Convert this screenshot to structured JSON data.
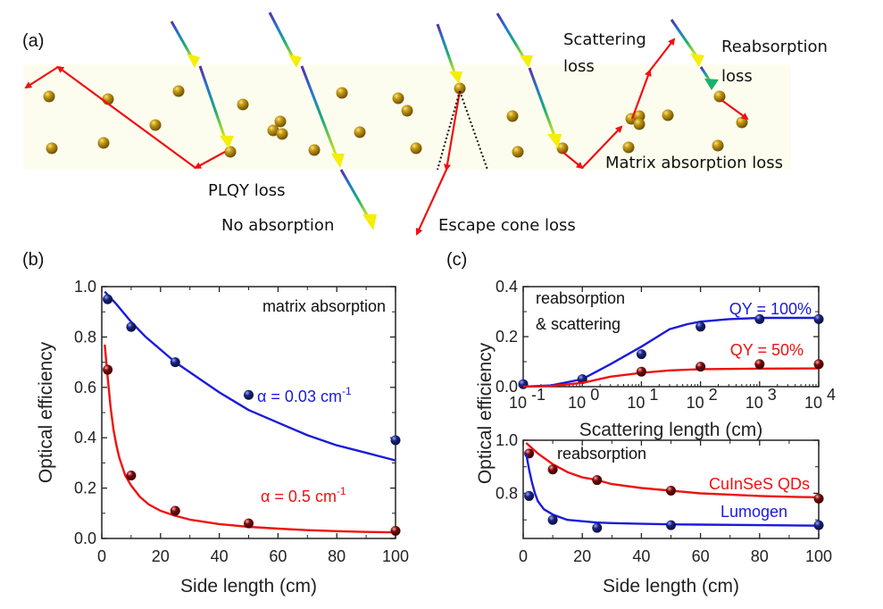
{
  "figure": {
    "panels": {
      "a": {
        "label": "(a)",
        "annotations": {
          "plqy": "PLQY loss",
          "no_absorption": "No absorption",
          "escape_cone": "Escape cone loss",
          "scattering_1": "Scattering",
          "scattering_2": "loss",
          "matrix": "Matrix absorption loss",
          "reabsorption_1": "Reabsorption",
          "reabsorption_2": "loss"
        },
        "colors": {
          "slab": "#fdfdef",
          "particle": "#b8900f",
          "emission": "#ee1111",
          "cone": "#111111"
        }
      },
      "b": {
        "label": "(b)"
      },
      "c": {
        "label": "(c)"
      }
    }
  },
  "chart_data": [
    {
      "id": "b",
      "type": "scatter",
      "title": "matrix absorption",
      "xlabel": "Side length (cm)",
      "ylabel": "Optical efficiency",
      "xlim": [
        0,
        100
      ],
      "ylim": [
        0,
        1.0
      ],
      "xticks": [
        0,
        20,
        40,
        60,
        80,
        100
      ],
      "yticks": [
        0.0,
        0.2,
        0.4,
        0.6,
        0.8,
        1.0
      ],
      "xtick_labels": [
        "0",
        "20",
        "40",
        "60",
        "80",
        "100"
      ],
      "ytick_labels": [
        "0.0",
        "0.2",
        "0.4",
        "0.6",
        "0.8",
        "1.0"
      ],
      "grid": false,
      "series": [
        {
          "name": "α = 0.03 cm⁻¹",
          "label_main": "α = 0.03 cm",
          "label_sup": "-1",
          "color": "#1a1adb",
          "marker_color": "#1a237e",
          "points": {
            "x": [
              2,
              10,
              25,
              50,
              100
            ],
            "y": [
              0.95,
              0.84,
              0.7,
              0.57,
              0.39
            ]
          },
          "fit": {
            "x": [
              1,
              5,
              10,
              15,
              20,
              25,
              30,
              40,
              50,
              60,
              70,
              80,
              90,
              100
            ],
            "y": [
              0.98,
              0.93,
              0.86,
              0.8,
              0.75,
              0.7,
              0.66,
              0.58,
              0.51,
              0.46,
              0.41,
              0.37,
              0.34,
              0.31
            ]
          }
        },
        {
          "name": "α = 0.5 cm⁻¹",
          "label_main": "α = 0.5 cm",
          "label_sup": "-1",
          "color": "#ee1111",
          "marker_color": "#7a0a0a",
          "points": {
            "x": [
              2,
              10,
              25,
              50,
              100
            ],
            "y": [
              0.67,
              0.25,
              0.11,
              0.06,
              0.03
            ]
          },
          "fit": {
            "x": [
              1,
              2,
              3,
              4,
              5,
              6,
              8,
              10,
              13,
              16,
              20,
              25,
              30,
              40,
              50,
              60,
              70,
              80,
              90,
              100
            ],
            "y": [
              0.77,
              0.64,
              0.52,
              0.43,
              0.37,
              0.32,
              0.25,
              0.21,
              0.165,
              0.135,
              0.11,
              0.09,
              0.075,
              0.057,
              0.046,
              0.039,
              0.033,
              0.029,
              0.026,
              0.024
            ]
          }
        }
      ]
    },
    {
      "id": "c-top",
      "type": "scatter",
      "title": "reabsorption & scattering",
      "title_lines": [
        "reabsorption",
        "& scattering"
      ],
      "xlabel": "Scattering length (cm)",
      "ylabel": "Optical efficiency",
      "xscale": "log",
      "xlim": [
        0.1,
        10000
      ],
      "ylim": [
        0,
        0.4
      ],
      "xticks": [
        0.1,
        1,
        10,
        100,
        1000,
        10000
      ],
      "xtick_labels": [
        {
          "base": "10",
          "exp": "-1"
        },
        {
          "base": "10",
          "exp": "0"
        },
        {
          "base": "10",
          "exp": "1"
        },
        {
          "base": "10",
          "exp": "2"
        },
        {
          "base": "10",
          "exp": "3"
        },
        {
          "base": "10",
          "exp": "4"
        }
      ],
      "yticks": [
        0.0,
        0.2,
        0.4
      ],
      "ytick_labels": [
        "0.0",
        "0.2",
        "0.4"
      ],
      "grid": false,
      "series": [
        {
          "name": "QY = 100%",
          "color": "#1a1adb",
          "marker_color": "#1a237e",
          "points": {
            "x": [
              0.1,
              1,
              10,
              100,
              1000,
              10000
            ],
            "y": [
              0.01,
              0.03,
              0.13,
              0.24,
              0.27,
              0.27
            ]
          },
          "fit": {
            "x": [
              0.1,
              0.3,
              1,
              3,
              10,
              30,
              60,
              100,
              300,
              1000,
              3000,
              10000
            ],
            "y": [
              0.0,
              0.005,
              0.03,
              0.09,
              0.16,
              0.23,
              0.25,
              0.26,
              0.27,
              0.275,
              0.275,
              0.275
            ]
          }
        },
        {
          "name": "QY = 50%",
          "color": "#ee1111",
          "marker_color": "#7a0a0a",
          "points": {
            "x": [
              10,
              100,
              1000,
              10000
            ],
            "y": [
              0.06,
              0.08,
              0.09,
              0.09
            ]
          },
          "fit": {
            "x": [
              0.1,
              0.3,
              1,
              3,
              10,
              30,
              100,
              1000,
              10000
            ],
            "y": [
              0.0,
              0.003,
              0.015,
              0.04,
              0.055,
              0.065,
              0.07,
              0.072,
              0.073
            ]
          }
        }
      ]
    },
    {
      "id": "c-bottom",
      "type": "scatter",
      "title": "reabsorption",
      "xlabel": "Side length (cm)",
      "ylabel": "Optical efficiency",
      "xlim": [
        0,
        100
      ],
      "ylim": [
        0.63,
        1.0
      ],
      "xticks": [
        0,
        20,
        40,
        60,
        80,
        100
      ],
      "xtick_labels": [
        "0",
        "20",
        "40",
        "60",
        "80",
        "100"
      ],
      "yticks": [
        0.8,
        1.0
      ],
      "ytick_labels": [
        "0.8",
        "1.0"
      ],
      "grid": false,
      "series": [
        {
          "name": "CuInSeS QDs",
          "color": "#ee1111",
          "marker_color": "#7a0a0a",
          "points": {
            "x": [
              2,
              10,
              25,
              50,
              100
            ],
            "y": [
              0.95,
              0.89,
              0.85,
              0.81,
              0.78
            ]
          },
          "fit": {
            "x": [
              1,
              5,
              10,
              15,
              20,
              25,
              30,
              40,
              50,
              60,
              70,
              80,
              90,
              100
            ],
            "y": [
              0.99,
              0.95,
              0.91,
              0.88,
              0.86,
              0.85,
              0.835,
              0.82,
              0.81,
              0.8,
              0.795,
              0.79,
              0.787,
              0.785
            ]
          }
        },
        {
          "name": "Lumogen",
          "color": "#1a1adb",
          "marker_color": "#1a237e",
          "points": {
            "x": [
              2,
              10,
              25,
              50,
              100
            ],
            "y": [
              0.79,
              0.7,
              0.67,
              0.68,
              0.68
            ]
          },
          "fit": {
            "x": [
              1,
              2,
              3,
              4,
              5,
              7,
              10,
              15,
              20,
              25,
              30,
              40,
              50,
              60,
              80,
              100
            ],
            "y": [
              0.95,
              0.89,
              0.84,
              0.8,
              0.77,
              0.74,
              0.72,
              0.7,
              0.695,
              0.69,
              0.688,
              0.685,
              0.683,
              0.682,
              0.68,
              0.678
            ]
          }
        }
      ]
    }
  ]
}
